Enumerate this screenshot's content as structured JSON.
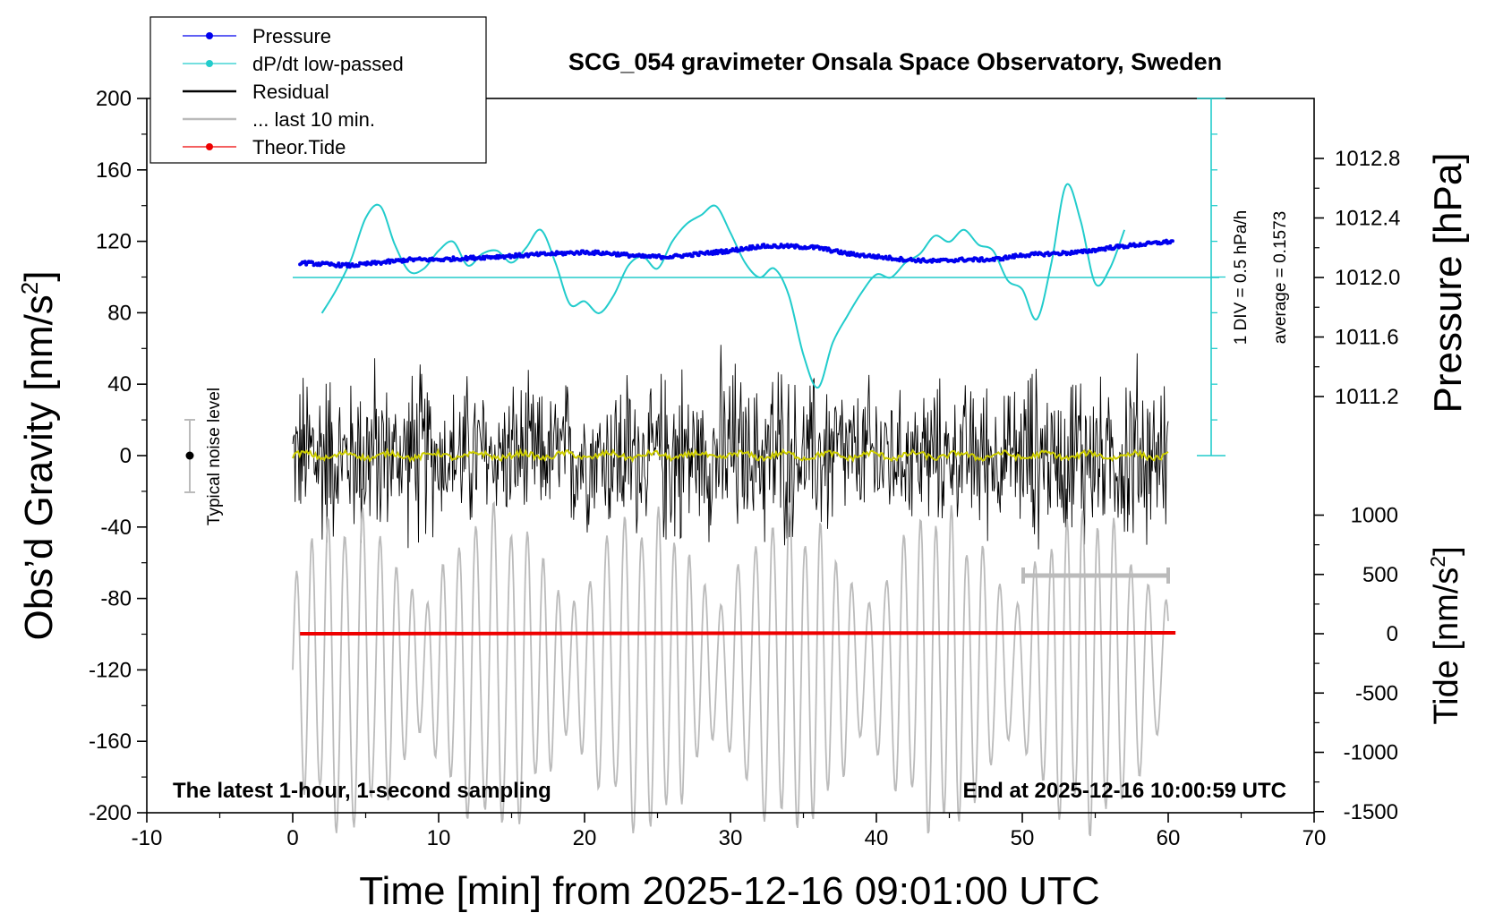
{
  "chart_data": {
    "type": "line",
    "title": "SCG_054 gravimeter Onsala Space Observatory, Sweden",
    "xlabel": "Time [min] from 2025-12-16 09:01:00 UTC",
    "ylabel_left": "Obs’d Gravity [nm/s",
    "ylabel_left_sup": "2",
    "ylabel_left_close": "]",
    "ylabel_right_pressure": "Pressure [hPa]",
    "ylabel_right_tide": "Tide [nm/s",
    "ylabel_right_tide_sup": "2",
    "ylabel_right_tide_close": "]",
    "xlim": [
      -10,
      70
    ],
    "ylim_left": [
      -200,
      200
    ],
    "pressure_range": [
      1010.8,
      1013.2
    ],
    "tide_range": [
      -1500,
      1500
    ],
    "grid": false,
    "legend_placement": "top-left",
    "x_ticks": [
      "-10",
      "0",
      "10",
      "20",
      "30",
      "40",
      "50",
      "60",
      "70"
    ],
    "y_ticks_left": [
      "200",
      "160",
      "120",
      "80",
      "40",
      "0",
      "-40",
      "-80",
      "-120",
      "-160",
      "-200"
    ],
    "y_ticks_pressure": [
      "1012.8",
      "1012.4",
      "1012.0",
      "1011.6",
      "1011.2"
    ],
    "y_ticks_tide": [
      "1000",
      "500",
      "0",
      "-500",
      "-1000",
      "-1500"
    ],
    "legend": [
      {
        "label": "Pressure",
        "color": "#0000ee",
        "marker": "dot"
      },
      {
        "label": "dP/dt low-passed",
        "color": "#22cccc",
        "marker": "dot"
      },
      {
        "label": "Residual",
        "color": "#000000",
        "marker": "line"
      },
      {
        "label": "... last 10 min.",
        "color": "#bbbbbb",
        "marker": "line"
      },
      {
        "label": "Theor.Tide",
        "color": "#ee0000",
        "marker": "dot"
      }
    ],
    "annotations": {
      "bottom_left": "The latest 1-hour, 1-second sampling",
      "bottom_right": "End at 2025-12-16 10:00:59 UTC",
      "noise_label": "Typical noise level",
      "dpdt_scale": "1 DIV = 0.5 hPa/h",
      "dpdt_average": "average = 0.1573"
    },
    "series": [
      {
        "name": "Pressure",
        "color": "#0000ee",
        "x": [
          0.5,
          2,
          4,
          6,
          8,
          10,
          12,
          14,
          16,
          18,
          20,
          22,
          24,
          26,
          28,
          30,
          32,
          34,
          36,
          38,
          40,
          42,
          44,
          46,
          48,
          50,
          52,
          54,
          56,
          58,
          60
        ],
        "y": [
          1012.1,
          1012.09,
          1012.08,
          1012.1,
          1012.12,
          1012.12,
          1012.13,
          1012.14,
          1012.15,
          1012.16,
          1012.17,
          1012.16,
          1012.14,
          1012.14,
          1012.16,
          1012.18,
          1012.21,
          1012.21,
          1012.2,
          1012.16,
          1012.14,
          1012.12,
          1012.11,
          1012.12,
          1012.12,
          1012.15,
          1012.16,
          1012.17,
          1012.2,
          1012.22,
          1012.24
        ]
      },
      {
        "name": "dP/dt low-passed",
        "color": "#22cccc",
        "baseline": 1012.0,
        "x": [
          2,
          3,
          4,
          5,
          6,
          7,
          8,
          9,
          10,
          11,
          12,
          13,
          14,
          15,
          16,
          17,
          18,
          19,
          20,
          21,
          22,
          23,
          24,
          25,
          26,
          27,
          28,
          29,
          30,
          31,
          32,
          33,
          34,
          35,
          36,
          37,
          38,
          39,
          40,
          41,
          42,
          43,
          44,
          45,
          46,
          47,
          48,
          49,
          50,
          51,
          52,
          53,
          54,
          55,
          56,
          57
        ],
        "y": [
          1011.76,
          1011.92,
          1012.12,
          1012.4,
          1012.48,
          1012.22,
          1012.04,
          1012.06,
          1012.18,
          1012.24,
          1012.08,
          1012.16,
          1012.18,
          1012.1,
          1012.2,
          1012.32,
          1012.1,
          1011.82,
          1011.84,
          1011.76,
          1011.88,
          1012.08,
          1012.14,
          1012.06,
          1012.24,
          1012.36,
          1012.42,
          1012.48,
          1012.3,
          1012.1,
          1012.0,
          1012.06,
          1011.88,
          1011.48,
          1011.26,
          1011.56,
          1011.74,
          1011.9,
          1012.02,
          1012.0,
          1012.1,
          1012.16,
          1012.28,
          1012.24,
          1012.32,
          1012.22,
          1012.18,
          1011.98,
          1011.92,
          1011.72,
          1012.1,
          1012.62,
          1012.38,
          1011.96,
          1012.06,
          1012.32
        ]
      },
      {
        "name": "Residual",
        "color": "#000000",
        "x_range": [
          0,
          60
        ],
        "amplitude": 70,
        "center": 0
      },
      {
        "name": "... last 10 min.",
        "color": "#bbbbbb",
        "x_range": [
          0,
          60
        ],
        "amplitude": 95,
        "center": -120
      },
      {
        "name": "Theor.Tide",
        "color": "#ee0000",
        "x": [
          0.5,
          60.5
        ],
        "y": [
          0,
          8
        ]
      }
    ]
  }
}
